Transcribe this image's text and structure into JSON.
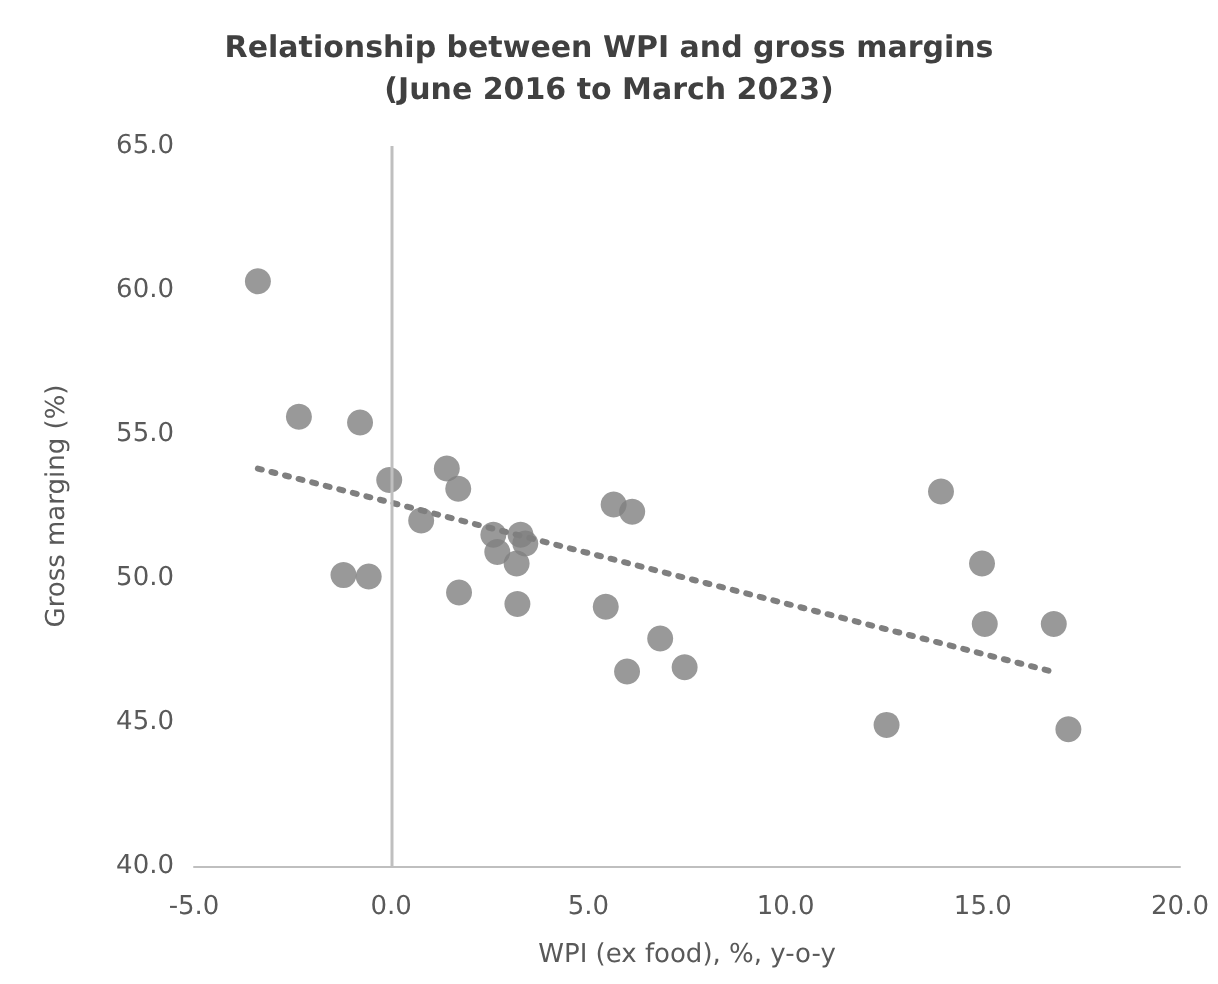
{
  "chart_data": {
    "type": "scatter",
    "title": "Relationship between WPI and gross margins\n(June 2016 to March 2023)",
    "xlabel": "WPI (ex food), %, y-o-y",
    "ylabel": "Gross marging (%)",
    "xlim": [
      -5,
      20
    ],
    "xticks": [
      {
        "value": -5,
        "label": "-5.0"
      },
      {
        "value": 0,
        "label": "0.0"
      },
      {
        "value": 5,
        "label": "5.0"
      },
      {
        "value": 10,
        "label": "10.0"
      },
      {
        "value": 15,
        "label": "15.0"
      },
      {
        "value": 20,
        "label": "20.0"
      }
    ],
    "ylim": [
      40,
      65
    ],
    "yticks": [
      {
        "value": 40,
        "label": "40.0"
      },
      {
        "value": 45,
        "label": "45.0"
      },
      {
        "value": 50,
        "label": "50.0"
      },
      {
        "value": 55,
        "label": "55.0"
      },
      {
        "value": 60,
        "label": "60.0"
      },
      {
        "value": 65,
        "label": "65.0"
      }
    ],
    "grid": false,
    "marker": "circle",
    "ref_lines": [
      {
        "axis": "x",
        "value": 0,
        "color": "#bfbfbf"
      }
    ],
    "series": [
      {
        "color": "#7f7f7f",
        "x": [
          -3.38,
          -2.34,
          -0.79,
          -0.05,
          -1.21,
          -0.57,
          0.76,
          1.41,
          1.7,
          1.72,
          2.59,
          2.69,
          3.28,
          3.4,
          3.18,
          3.2,
          5.44,
          5.64,
          6.11,
          5.98,
          6.82,
          7.44,
          12.56,
          13.94,
          14.98,
          15.05,
          16.8,
          17.17
        ],
        "values": [
          60.3,
          55.6,
          55.4,
          53.4,
          50.1,
          50.05,
          52.0,
          53.8,
          53.1,
          49.5,
          51.5,
          50.9,
          51.5,
          51.2,
          50.5,
          49.1,
          49.0,
          52.55,
          52.3,
          46.75,
          47.9,
          46.9,
          44.9,
          53.0,
          50.5,
          48.4,
          48.4,
          44.75
        ]
      },
      {
        "type": "line",
        "color": "#7f7f7f",
        "line_style": "dotted",
        "marker": "none",
        "x": [
          -3.38,
          16.9
        ],
        "values": [
          53.8,
          46.7
        ]
      }
    ]
  }
}
